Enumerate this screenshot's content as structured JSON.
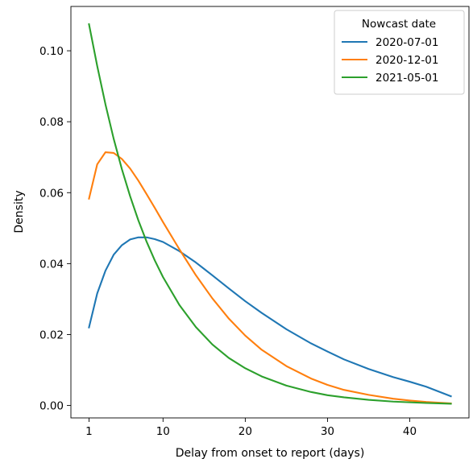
{
  "chart_data": {
    "type": "line",
    "xlabel": "Delay from onset to report (days)",
    "ylabel": "Density",
    "xlim": [
      -1.2,
      47.2
    ],
    "ylim": [
      -0.0035,
      0.1125
    ],
    "xticks": [
      1,
      10,
      20,
      30,
      40
    ],
    "yticks": [
      0.0,
      0.02,
      0.04,
      0.06,
      0.08,
      0.1
    ],
    "ytick_labels": [
      "0.00",
      "0.02",
      "0.04",
      "0.06",
      "0.08",
      "0.10"
    ],
    "grid": false,
    "legend": {
      "title": "Nowcast date",
      "placement": "top-right"
    },
    "series": [
      {
        "name": "2020-07-01",
        "color": "#1f77b4",
        "x": [
          1,
          2,
          3,
          4,
          5,
          6,
          7,
          8,
          9,
          10,
          12,
          14,
          16,
          18,
          20,
          22,
          25,
          28,
          30,
          32,
          35,
          38,
          40,
          42,
          45
        ],
        "y": [
          0.022,
          0.0316,
          0.038,
          0.0425,
          0.0452,
          0.0468,
          0.0474,
          0.0474,
          0.0469,
          0.0461,
          0.0435,
          0.0403,
          0.0367,
          0.033,
          0.0294,
          0.0261,
          0.0215,
          0.0175,
          0.0152,
          0.013,
          0.0103,
          0.008,
          0.0067,
          0.0053,
          0.0026
        ]
      },
      {
        "name": "2020-12-01",
        "color": "#ff7f0e",
        "x": [
          1,
          2,
          3,
          4,
          5,
          6,
          7,
          8,
          9,
          10,
          12,
          14,
          16,
          18,
          20,
          22,
          25,
          28,
          30,
          32,
          35,
          38,
          40,
          42,
          45
        ],
        "y": [
          0.0583,
          0.068,
          0.0714,
          0.0712,
          0.0695,
          0.0668,
          0.0634,
          0.0596,
          0.0557,
          0.0517,
          0.044,
          0.0367,
          0.0302,
          0.0245,
          0.0197,
          0.0157,
          0.0111,
          0.0076,
          0.0058,
          0.0044,
          0.003,
          0.0019,
          0.0014,
          0.001,
          0.0006
        ]
      },
      {
        "name": "2021-05-01",
        "color": "#2ca02c",
        "x": [
          1,
          2,
          3,
          4,
          5,
          6,
          7,
          8,
          9,
          10,
          12,
          14,
          16,
          18,
          20,
          22,
          25,
          28,
          30,
          32,
          35,
          38,
          40,
          42,
          45
        ],
        "y": [
          0.1075,
          0.0957,
          0.0849,
          0.0752,
          0.0666,
          0.059,
          0.0522,
          0.0462,
          0.0409,
          0.0362,
          0.0283,
          0.0221,
          0.0172,
          0.0134,
          0.0105,
          0.0082,
          0.0056,
          0.0038,
          0.0029,
          0.0023,
          0.0016,
          0.0011,
          0.0009,
          0.0007,
          0.0005
        ]
      }
    ]
  }
}
